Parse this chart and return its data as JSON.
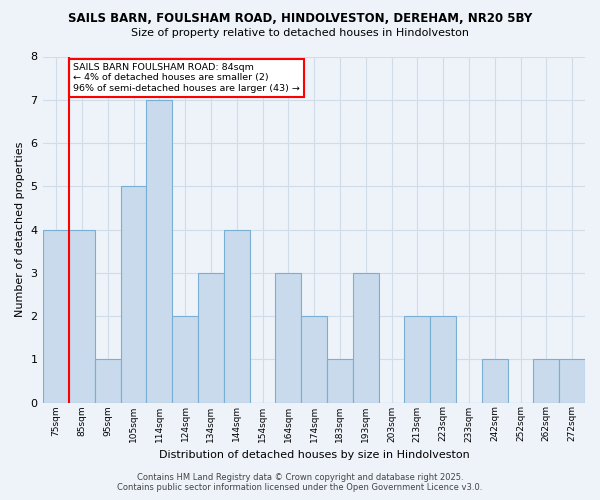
{
  "title_line1": "SAILS BARN, FOULSHAM ROAD, HINDOLVESTON, DEREHAM, NR20 5BY",
  "title_line2": "Size of property relative to detached houses in Hindolveston",
  "xlabel": "Distribution of detached houses by size in Hindolveston",
  "ylabel": "Number of detached properties",
  "bin_labels": [
    "75sqm",
    "85sqm",
    "95sqm",
    "105sqm",
    "114sqm",
    "124sqm",
    "134sqm",
    "144sqm",
    "154sqm",
    "164sqm",
    "174sqm",
    "183sqm",
    "193sqm",
    "203sqm",
    "213sqm",
    "223sqm",
    "233sqm",
    "242sqm",
    "252sqm",
    "262sqm",
    "272sqm"
  ],
  "counts": [
    4,
    4,
    1,
    5,
    7,
    2,
    3,
    4,
    0,
    3,
    2,
    1,
    3,
    0,
    2,
    2,
    0,
    1,
    0,
    1,
    1
  ],
  "bar_color": "#c8daec",
  "bar_edge_color": "#7aafd4",
  "ylim": [
    0,
    8
  ],
  "yticks": [
    0,
    1,
    2,
    3,
    4,
    5,
    6,
    7,
    8
  ],
  "marker_bin_index": 1,
  "marker_color": "red",
  "annotation_text": "SAILS BARN FOULSHAM ROAD: 84sqm\n← 4% of detached houses are smaller (2)\n96% of semi-detached houses are larger (43) →",
  "background_color": "#eef3fa",
  "grid_color": "#d0dce8",
  "footer_line1": "Contains HM Land Registry data © Crown copyright and database right 2025.",
  "footer_line2": "Contains public sector information licensed under the Open Government Licence v3.0."
}
